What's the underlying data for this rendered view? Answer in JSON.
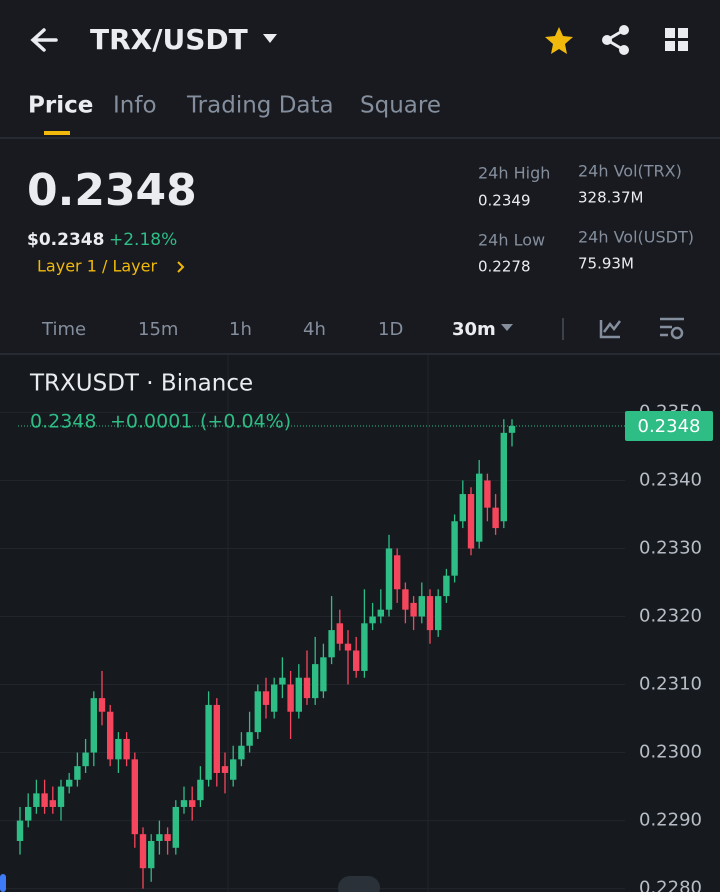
{
  "header": {
    "pair": "TRX/USDT"
  },
  "tabs": [
    "Price",
    "Info",
    "Trading Data",
    "Square"
  ],
  "price": {
    "last": "0.2348",
    "usd": "$0.2348",
    "change": "+2.18%",
    "tag": "Layer 1 / Layer"
  },
  "stats": [
    {
      "label": "24h High",
      "value": "0.2349"
    },
    {
      "label": "24h Vol(TRX)",
      "value": "328.37M"
    },
    {
      "label": "24h Low",
      "value": "0.2278"
    },
    {
      "label": "24h Vol(USDT)",
      "value": "75.93M"
    }
  ],
  "intervals": [
    "Time",
    "15m",
    "1h",
    "4h",
    "1D",
    "30m"
  ],
  "chart_data": {
    "type": "candlestick",
    "title": "TRXUSDT · Binance",
    "legend": {
      "close": "0.2348",
      "change": "+0.0001",
      "change_pct": "(+0.04%)"
    },
    "current_price": 0.2348,
    "up_color": "#2ebd85",
    "down_color": "#f6465d",
    "ylim": [
      0.22795,
      0.2358
    ],
    "yticks": [
      {
        "value": 0.235,
        "label": "0.2350"
      },
      {
        "value": 0.234,
        "label": "0.2340"
      },
      {
        "value": 0.233,
        "label": "0.2330"
      },
      {
        "value": 0.232,
        "label": "0.2320"
      },
      {
        "value": 0.231,
        "label": "0.2310"
      },
      {
        "value": 0.23,
        "label": "0.2300"
      },
      {
        "value": 0.229,
        "label": "0.2290"
      },
      {
        "value": 0.228,
        "label": "0.2280"
      }
    ],
    "grid": true,
    "open": [
      0.2287,
      0.229,
      0.2292,
      0.2294,
      0.2293,
      0.2292,
      0.2295,
      0.2296,
      0.2298,
      0.23,
      0.2308,
      0.2306,
      0.2299,
      0.2302,
      0.2299,
      0.2288,
      0.2283,
      0.2287,
      0.2288,
      0.2286,
      0.2292,
      0.2293,
      0.2293,
      0.2296,
      0.2307,
      0.2298,
      0.2296,
      0.2299,
      0.2301,
      0.2303,
      0.2309,
      0.2306,
      0.231,
      0.231,
      0.2306,
      0.2311,
      0.2308,
      0.2309,
      0.2314,
      0.2319,
      0.2316,
      0.2315,
      0.2312,
      0.2319,
      0.232,
      0.2321,
      0.2329,
      0.2324,
      0.2322,
      0.232,
      0.2323,
      0.2318,
      0.2323,
      0.2326,
      0.2334,
      0.2338,
      0.2331,
      0.234,
      0.2336,
      0.2334,
      0.2347
    ],
    "high": [
      0.2292,
      0.2294,
      0.2296,
      0.2296,
      0.2295,
      0.2296,
      0.2297,
      0.23,
      0.2302,
      0.2309,
      0.2312,
      0.2307,
      0.2303,
      0.2303,
      0.23,
      0.2289,
      0.2288,
      0.229,
      0.2289,
      0.2293,
      0.2295,
      0.2295,
      0.2298,
      0.2309,
      0.2308,
      0.23,
      0.2301,
      0.2303,
      0.2306,
      0.231,
      0.2311,
      0.2311,
      0.2314,
      0.2312,
      0.2313,
      0.2315,
      0.2317,
      0.2316,
      0.2323,
      0.2321,
      0.2318,
      0.2317,
      0.2324,
      0.2322,
      0.2324,
      0.2332,
      0.233,
      0.2325,
      0.2323,
      0.2325,
      0.2324,
      0.2324,
      0.2327,
      0.2335,
      0.234,
      0.2339,
      0.2343,
      0.2341,
      0.2338,
      0.2349,
      0.2349
    ],
    "low": [
      0.2285,
      0.2289,
      0.2291,
      0.2291,
      0.2291,
      0.229,
      0.2294,
      0.2295,
      0.2297,
      0.2298,
      0.2304,
      0.2298,
      0.2297,
      0.2298,
      0.2286,
      0.228,
      0.2281,
      0.2285,
      0.2285,
      0.2285,
      0.2291,
      0.229,
      0.2292,
      0.2295,
      0.2295,
      0.2294,
      0.2295,
      0.2298,
      0.23,
      0.2302,
      0.2305,
      0.2305,
      0.2308,
      0.2302,
      0.2305,
      0.2307,
      0.2307,
      0.2308,
      0.2313,
      0.2315,
      0.231,
      0.2311,
      0.2311,
      0.2318,
      0.2319,
      0.232,
      0.2322,
      0.2319,
      0.2318,
      0.2319,
      0.2316,
      0.2317,
      0.2322,
      0.2325,
      0.2333,
      0.2329,
      0.233,
      0.2334,
      0.2332,
      0.2333,
      0.2345
    ],
    "close": [
      0.229,
      0.2292,
      0.2294,
      0.2292,
      0.2292,
      0.2295,
      0.2296,
      0.2298,
      0.23,
      0.2308,
      0.2306,
      0.2299,
      0.2302,
      0.2299,
      0.2288,
      0.2283,
      0.2287,
      0.2288,
      0.2287,
      0.2292,
      0.2293,
      0.2292,
      0.2296,
      0.2307,
      0.2297,
      0.2297,
      0.2299,
      0.2301,
      0.2303,
      0.2309,
      0.2307,
      0.231,
      0.2311,
      0.2306,
      0.2311,
      0.2308,
      0.2313,
      0.2314,
      0.2318,
      0.2316,
      0.2315,
      0.2312,
      0.2319,
      0.232,
      0.2321,
      0.233,
      0.2324,
      0.2321,
      0.232,
      0.2323,
      0.2318,
      0.2323,
      0.2326,
      0.2334,
      0.2338,
      0.233,
      0.2341,
      0.2336,
      0.2333,
      0.2347,
      0.2348
    ]
  }
}
